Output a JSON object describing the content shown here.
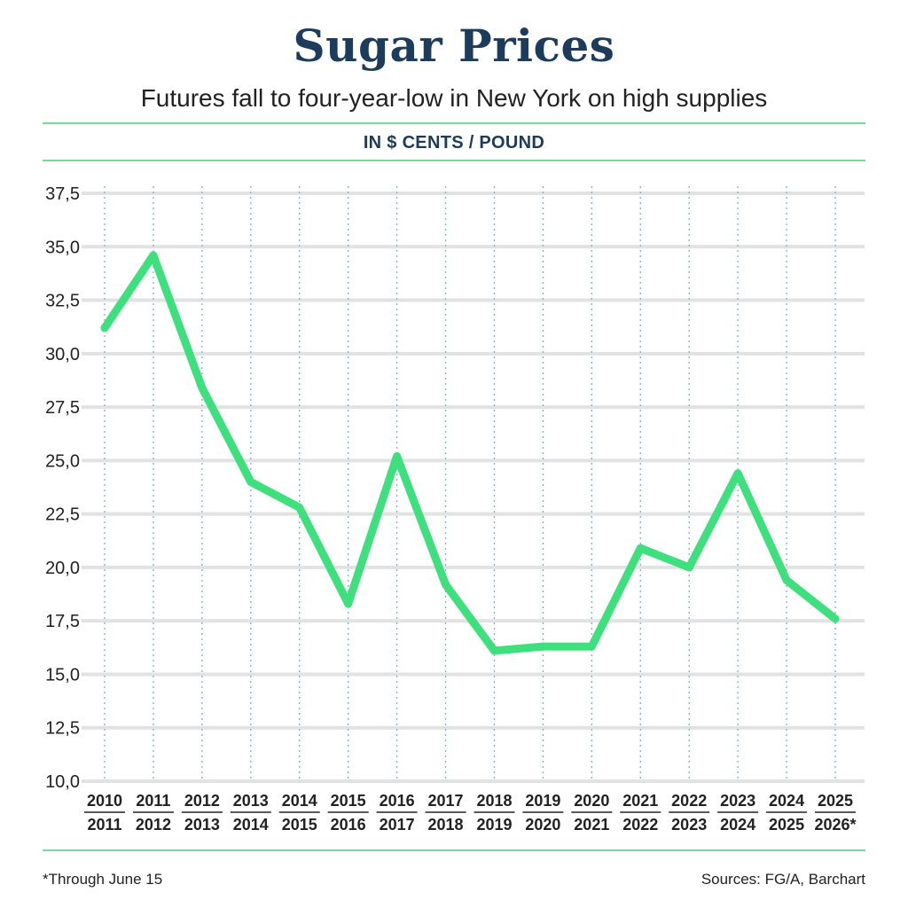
{
  "header": {
    "title": "Sugar Prices",
    "subtitle": "Futures fall to four-year-low in New York on high supplies",
    "unit": "IN $ CENTS / POUND"
  },
  "footer": {
    "note": "*Through June 15",
    "source": "Sources: FG/A, Barchart"
  },
  "colors": {
    "line": "#3ee07e",
    "title": "#1d3c5c",
    "rule": "#76d9a2",
    "grid": "#e2e2e2",
    "vgrid": "#7fb3c8"
  },
  "chart_data": {
    "type": "line",
    "title": "Sugar Prices",
    "subtitle": "Futures fall to four-year-low in New York on high supplies",
    "ylabel": "IN $ CENTS / POUND",
    "ylim": [
      10,
      37.5
    ],
    "y_ticks": [
      "10,0",
      "12,5",
      "15,0",
      "17,5",
      "20,0",
      "22,5",
      "25,0",
      "27,5",
      "30,0",
      "32,5",
      "35,0",
      "37,5"
    ],
    "categories": [
      {
        "top": "2010",
        "bottom": "2011"
      },
      {
        "top": "2011",
        "bottom": "2012"
      },
      {
        "top": "2012",
        "bottom": "2013"
      },
      {
        "top": "2013",
        "bottom": "2014"
      },
      {
        "top": "2014",
        "bottom": "2015"
      },
      {
        "top": "2015",
        "bottom": "2016"
      },
      {
        "top": "2016",
        "bottom": "2017"
      },
      {
        "top": "2017",
        "bottom": "2018"
      },
      {
        "top": "2018",
        "bottom": "2019"
      },
      {
        "top": "2019",
        "bottom": "2020"
      },
      {
        "top": "2020",
        "bottom": "2021"
      },
      {
        "top": "2021",
        "bottom": "2022"
      },
      {
        "top": "2022",
        "bottom": "2023"
      },
      {
        "top": "2023",
        "bottom": "2024"
      },
      {
        "top": "2024",
        "bottom": "2025"
      },
      {
        "top": "2025",
        "bottom": "2026*"
      }
    ],
    "series": [
      {
        "values": [
          31.2,
          34.6,
          28.4,
          24.0,
          22.8,
          18.3,
          25.2,
          19.2,
          16.1,
          16.3,
          16.3,
          20.9,
          20.0,
          24.4,
          19.4,
          17.6
        ]
      }
    ],
    "grid": "on"
  }
}
